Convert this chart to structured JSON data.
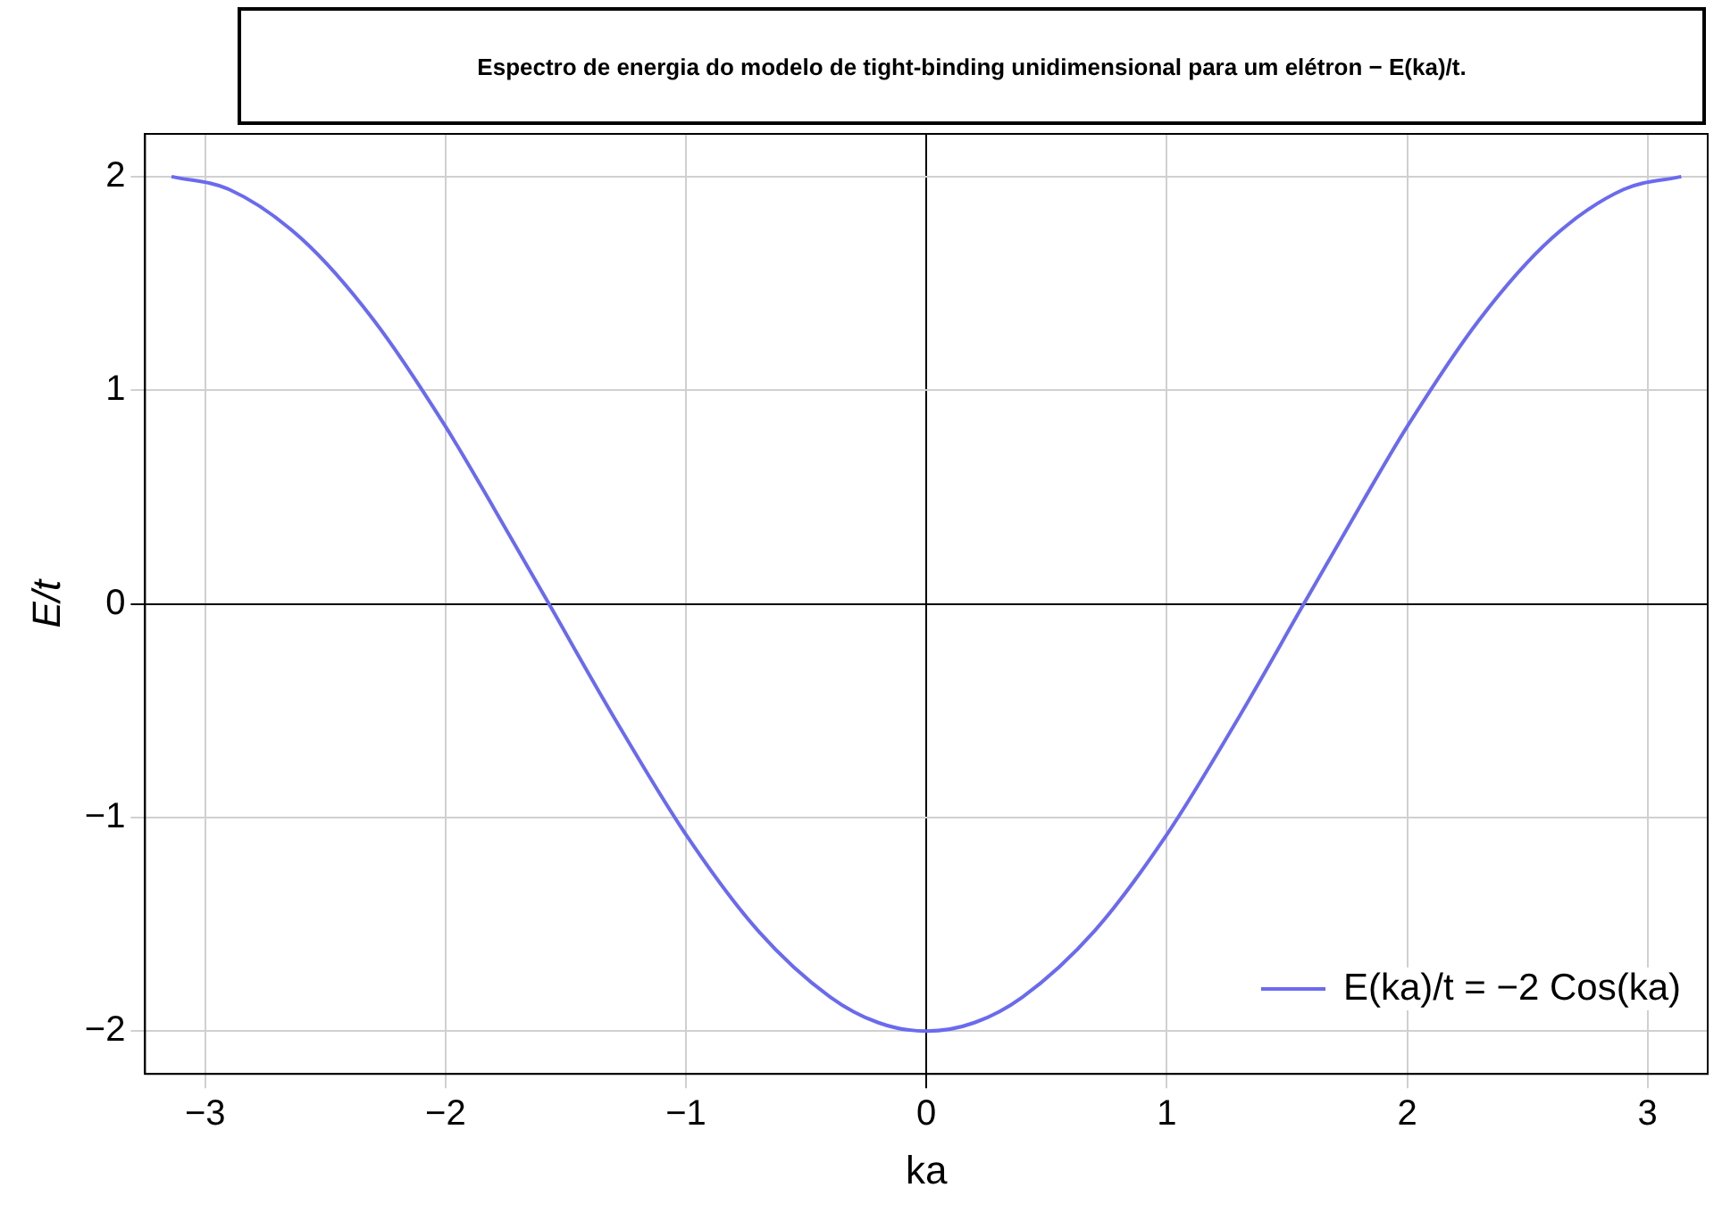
{
  "chart_data": {
    "type": "line",
    "title": "Espectro de energia do modelo de tight-binding unidimensional para um elétron − E(ka)/t.",
    "xlabel": "ka",
    "ylabel": "E/t",
    "series": [
      {
        "name": "E(ka)/t = −2 Cos(ka)",
        "color": "#6a6af0",
        "x": [
          -3.14,
          -2.9,
          -2.6,
          -2.3,
          -2.0,
          -1.8,
          -1.57,
          -1.3,
          -1.0,
          -0.7,
          -0.4,
          -0.2,
          0,
          0.2,
          0.4,
          0.7,
          1.0,
          1.3,
          1.57,
          1.8,
          2.0,
          2.3,
          2.6,
          2.9,
          3.14
        ],
        "values": [
          2.0,
          1.94,
          1.71,
          1.33,
          0.83,
          0.45,
          0,
          -0.53,
          -1.08,
          -1.53,
          -1.84,
          -1.96,
          -2.0,
          -1.96,
          -1.84,
          -1.53,
          -1.08,
          -0.53,
          0,
          0.45,
          0.83,
          1.33,
          1.71,
          1.94,
          2.0
        ]
      }
    ],
    "xlim": [
      -3.25,
      3.25
    ],
    "ylim": [
      -2.2,
      2.2
    ],
    "xticks": [
      -3,
      -2,
      -1,
      0,
      1,
      2,
      3
    ],
    "yticks": [
      -2,
      -1,
      0,
      1,
      2
    ],
    "grid": true,
    "legend": "bottom right",
    "marker": "none",
    "line_style": "solid"
  }
}
